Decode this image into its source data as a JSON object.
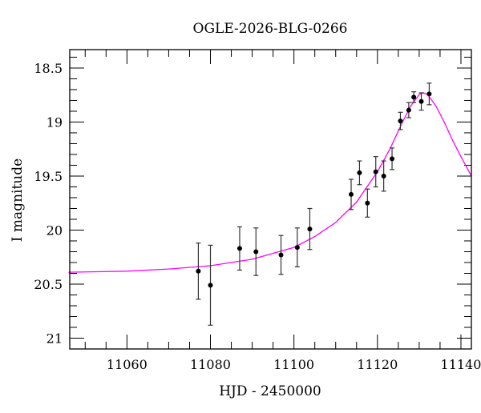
{
  "chart_data": {
    "type": "scatter",
    "title": "OGLE-2026-BLG-0266",
    "xlabel": "HJD - 2450000",
    "ylabel": "I magnitude",
    "xlim": [
      11046.3,
      11142.5
    ],
    "ylim": [
      21.1,
      18.33
    ],
    "y_inverted": true,
    "grid": false,
    "x_major_ticks": [
      11060,
      11080,
      11100,
      11120,
      11140
    ],
    "x_tick_labels": [
      "11060",
      "11080",
      "11100",
      "11120",
      "11140"
    ],
    "x_minor_step": 5,
    "y_major_ticks": [
      18.5,
      19,
      19.5,
      20,
      20.5,
      21
    ],
    "y_tick_labels": [
      "18.5",
      "19",
      "19.5",
      "20",
      "20.5",
      "21"
    ],
    "y_minor_step": 0.1,
    "colors": {
      "points": "#000000",
      "model": "#ff00ff"
    },
    "series": [
      {
        "kind": "points-with-errorbars",
        "x": [
          11077.1,
          11080.0,
          11087.0,
          11090.9,
          11096.9,
          11100.8,
          11103.8,
          11113.7,
          11115.7,
          11117.6,
          11119.6,
          11121.5,
          11123.5,
          11125.5,
          11127.5,
          11128.7,
          11130.5,
          11132.4
        ],
        "y": [
          20.38,
          20.51,
          20.17,
          20.2,
          20.23,
          20.16,
          19.99,
          19.67,
          19.47,
          19.75,
          19.46,
          19.5,
          19.34,
          18.99,
          18.89,
          18.77,
          18.81,
          18.74
        ],
        "err": [
          0.26,
          0.37,
          0.2,
          0.22,
          0.18,
          0.18,
          0.19,
          0.14,
          0.11,
          0.13,
          0.14,
          0.14,
          0.1,
          0.08,
          0.07,
          0.05,
          0.08,
          0.1
        ]
      },
      {
        "kind": "model-curve",
        "x": [
          11046,
          11060,
          11070,
          11080,
          11090,
          11100,
          11105,
          11110,
          11115,
          11120,
          11123,
          11126,
          11128,
          11130,
          11131,
          11132,
          11134,
          11136,
          11138,
          11140,
          11142.5
        ],
        "y": [
          20.39,
          20.38,
          20.36,
          20.33,
          20.27,
          20.16,
          20.06,
          19.93,
          19.74,
          19.46,
          19.25,
          19.0,
          18.85,
          18.745,
          18.73,
          18.745,
          18.85,
          19.0,
          19.17,
          19.32,
          19.5
        ]
      }
    ]
  }
}
